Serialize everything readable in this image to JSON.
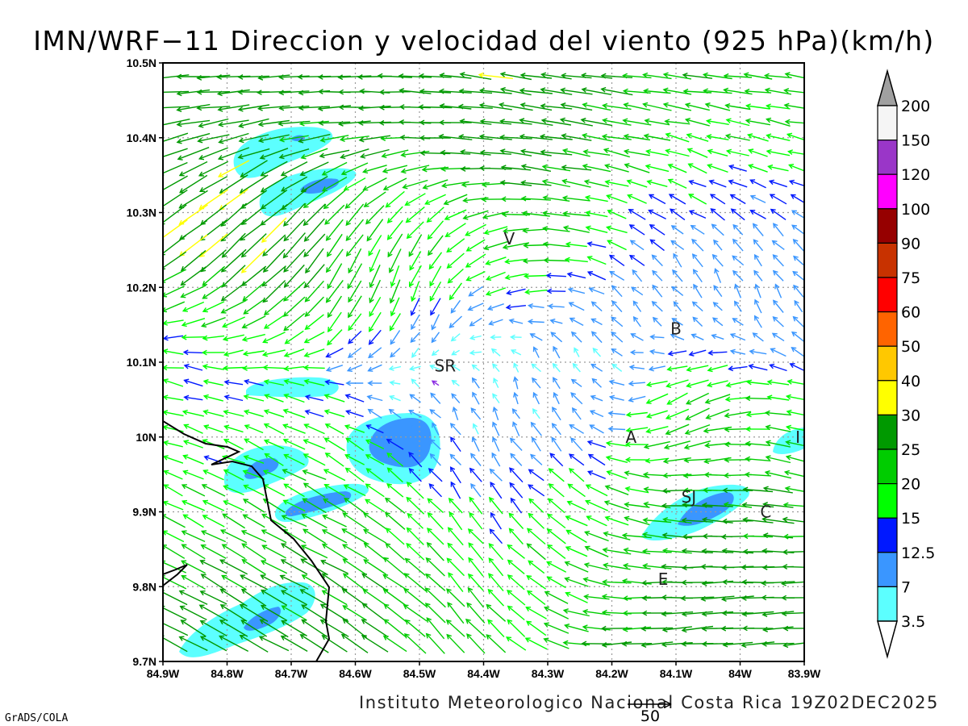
{
  "title": "IMN/WRF−11 Direccion y velocidad del viento (925 hPa)(km/h)",
  "footer_left": "GrADS/COLA",
  "footer_right": "Instituto Meteorologico Nacional Costa Rica 19Z02DEC2025",
  "reference_vector_label": "50",
  "map": {
    "lon_range": [
      -84.9,
      -83.9
    ],
    "lat_range": [
      9.7,
      10.5
    ],
    "lon_ticks": [
      "84.9W",
      "84.8W",
      "84.7W",
      "84.6W",
      "84.5W",
      "84.4W",
      "84.3W",
      "84.2W",
      "84.1W",
      "84W",
      "83.9W"
    ],
    "lat_ticks": [
      "9.7N",
      "9.8N",
      "9.9N",
      "10N",
      "10.1N",
      "10.2N",
      "10.3N",
      "10.4N",
      "10.5N"
    ],
    "places": [
      {
        "label": "V",
        "lon": -84.36,
        "lat": 10.265
      },
      {
        "label": "B",
        "lon": -84.1,
        "lat": 10.145
      },
      {
        "label": "SR",
        "lon": -84.46,
        "lat": 10.095
      },
      {
        "label": "A",
        "lon": -84.17,
        "lat": 10.0
      },
      {
        "label": "I",
        "lon": -83.91,
        "lat": 10.0
      },
      {
        "label": "SJ",
        "lon": -84.08,
        "lat": 9.92
      },
      {
        "label": "C",
        "lon": -83.96,
        "lat": 9.9
      },
      {
        "label": "E",
        "lon": -84.12,
        "lat": 9.81
      }
    ]
  },
  "colorbar": {
    "labels": [
      "3.5",
      "7",
      "12.5",
      "15",
      "20",
      "25",
      "30",
      "40",
      "50",
      "60",
      "75",
      "90",
      "100",
      "120",
      "150",
      "200"
    ],
    "colors": [
      "#5cffff",
      "#3a96ff",
      "#0018ff",
      "#00ff00",
      "#00cc00",
      "#009900",
      "#ffff00",
      "#ffc800",
      "#ff6400",
      "#ff0000",
      "#c83200",
      "#960000",
      "#ff00ff",
      "#9a36c8",
      "#f5f5f5",
      "#a0a0a0"
    ]
  }
}
